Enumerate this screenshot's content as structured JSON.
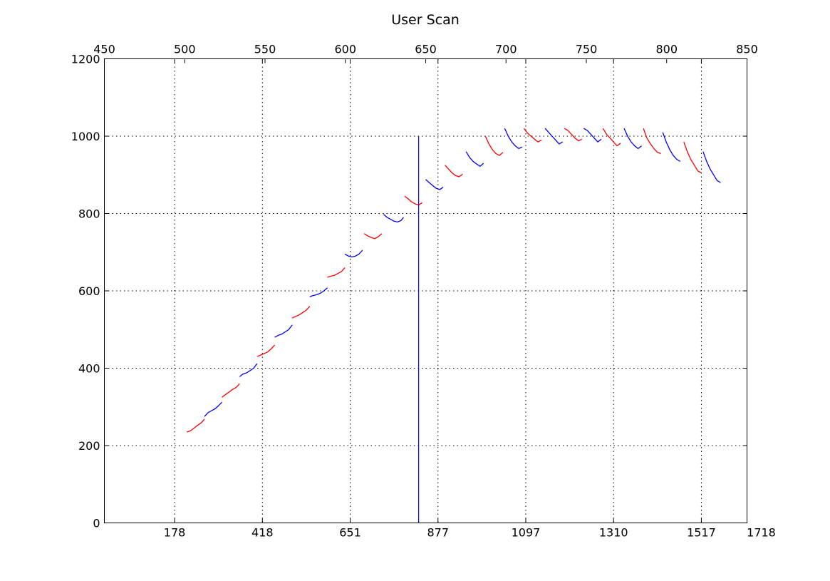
{
  "chart_data": {
    "type": "line",
    "title": "User Scan",
    "xlabel": "",
    "ylabel": "",
    "ylim": [
      0,
      1200
    ],
    "bottom_axis": {
      "range": [
        0,
        1830
      ],
      "ticks": [
        {
          "value": 200,
          "label": "178"
        },
        {
          "value": 450,
          "label": "418"
        },
        {
          "value": 700,
          "label": "651"
        },
        {
          "value": 950,
          "label": "877"
        },
        {
          "value": 1200,
          "label": "1097"
        },
        {
          "value": 1450,
          "label": "1310"
        },
        {
          "value": 1700,
          "label": "1517"
        },
        {
          "value": 1950,
          "label": "1718"
        }
      ]
    },
    "top_axis": {
      "range": [
        450,
        850
      ],
      "ticks": [
        450,
        500,
        550,
        600,
        650,
        700,
        750,
        800,
        850
      ]
    },
    "y_ticks": [
      0,
      200,
      400,
      600,
      800,
      1000,
      1200
    ],
    "grid": true,
    "colors": {
      "red": "#ff0000",
      "blue": "#0000ff",
      "marker": "#0000ff"
    },
    "marker_line": {
      "x": 895,
      "y_from": 0,
      "y_to": 1000
    },
    "series": [
      {
        "color": "red",
        "points": [
          [
            235,
            235
          ],
          [
            245,
            238
          ],
          [
            255,
            245
          ],
          [
            265,
            252
          ],
          [
            275,
            258
          ],
          [
            285,
            268
          ]
        ]
      },
      {
        "color": "blue",
        "points": [
          [
            285,
            275
          ],
          [
            295,
            285
          ],
          [
            305,
            290
          ],
          [
            315,
            295
          ],
          [
            325,
            303
          ],
          [
            335,
            312
          ]
        ]
      },
      {
        "color": "red",
        "points": [
          [
            335,
            325
          ],
          [
            345,
            332
          ],
          [
            355,
            338
          ],
          [
            365,
            345
          ],
          [
            375,
            350
          ],
          [
            385,
            360
          ]
        ]
      },
      {
        "color": "blue",
        "points": [
          [
            385,
            378
          ],
          [
            395,
            385
          ],
          [
            405,
            388
          ],
          [
            415,
            394
          ],
          [
            425,
            400
          ],
          [
            435,
            412
          ]
        ]
      },
      {
        "color": "red",
        "points": [
          [
            435,
            430
          ],
          [
            445,
            434
          ],
          [
            455,
            438
          ],
          [
            465,
            442
          ],
          [
            475,
            450
          ],
          [
            485,
            460
          ]
        ]
      },
      {
        "color": "blue",
        "points": [
          [
            485,
            480
          ],
          [
            495,
            485
          ],
          [
            505,
            488
          ],
          [
            515,
            494
          ],
          [
            525,
            500
          ],
          [
            535,
            512
          ]
        ]
      },
      {
        "color": "red",
        "points": [
          [
            535,
            530
          ],
          [
            545,
            534
          ],
          [
            555,
            538
          ],
          [
            565,
            544
          ],
          [
            575,
            550
          ],
          [
            585,
            560
          ]
        ]
      },
      {
        "color": "blue",
        "points": [
          [
            585,
            585
          ],
          [
            595,
            588
          ],
          [
            605,
            590
          ],
          [
            615,
            594
          ],
          [
            625,
            600
          ],
          [
            635,
            608
          ]
        ]
      },
      {
        "color": "red",
        "points": [
          [
            635,
            635
          ],
          [
            645,
            638
          ],
          [
            655,
            640
          ],
          [
            665,
            645
          ],
          [
            675,
            650
          ],
          [
            685,
            660
          ]
        ]
      },
      {
        "color": "blue",
        "points": [
          [
            685,
            695
          ],
          [
            695,
            690
          ],
          [
            705,
            688
          ],
          [
            715,
            690
          ],
          [
            725,
            695
          ],
          [
            735,
            705
          ]
        ]
      },
      {
        "color": "red",
        "points": [
          [
            740,
            748
          ],
          [
            750,
            742
          ],
          [
            760,
            738
          ],
          [
            770,
            735
          ],
          [
            780,
            740
          ],
          [
            790,
            748
          ]
        ]
      },
      {
        "color": "blue",
        "points": [
          [
            795,
            798
          ],
          [
            805,
            790
          ],
          [
            815,
            785
          ],
          [
            825,
            780
          ],
          [
            835,
            778
          ],
          [
            845,
            782
          ],
          [
            852,
            790
          ]
        ]
      },
      {
        "color": "red",
        "points": [
          [
            855,
            845
          ],
          [
            865,
            838
          ],
          [
            875,
            830
          ],
          [
            885,
            825
          ],
          [
            895,
            822
          ],
          [
            905,
            828
          ]
        ]
      },
      {
        "color": "blue",
        "points": [
          [
            915,
            888
          ],
          [
            925,
            880
          ],
          [
            935,
            872
          ],
          [
            945,
            865
          ],
          [
            955,
            862
          ],
          [
            965,
            868
          ]
        ]
      },
      {
        "color": "red",
        "points": [
          [
            970,
            925
          ],
          [
            980,
            915
          ],
          [
            990,
            905
          ],
          [
            1000,
            898
          ],
          [
            1010,
            895
          ],
          [
            1020,
            902
          ]
        ]
      },
      {
        "color": "blue",
        "points": [
          [
            1030,
            960
          ],
          [
            1040,
            945
          ],
          [
            1050,
            935
          ],
          [
            1060,
            928
          ],
          [
            1070,
            922
          ],
          [
            1080,
            930
          ]
        ]
      },
      {
        "color": "red",
        "points": [
          [
            1085,
            1000
          ],
          [
            1095,
            980
          ],
          [
            1105,
            965
          ],
          [
            1115,
            955
          ],
          [
            1125,
            950
          ],
          [
            1135,
            958
          ]
        ]
      },
      {
        "color": "blue",
        "points": [
          [
            1140,
            1020
          ],
          [
            1150,
            1000
          ],
          [
            1160,
            985
          ],
          [
            1170,
            975
          ],
          [
            1180,
            968
          ],
          [
            1190,
            972
          ]
        ]
      },
      {
        "color": "red",
        "points": [
          [
            1195,
            1020
          ],
          [
            1205,
            1008
          ],
          [
            1215,
            1000
          ],
          [
            1225,
            992
          ],
          [
            1235,
            985
          ],
          [
            1245,
            990
          ]
        ]
      },
      {
        "color": "blue",
        "points": [
          [
            1255,
            1020
          ],
          [
            1265,
            1010
          ],
          [
            1275,
            1000
          ],
          [
            1285,
            990
          ],
          [
            1295,
            980
          ],
          [
            1305,
            985
          ]
        ]
      },
      {
        "color": "red",
        "points": [
          [
            1310,
            1020
          ],
          [
            1320,
            1015
          ],
          [
            1330,
            1005
          ],
          [
            1340,
            995
          ],
          [
            1350,
            988
          ],
          [
            1360,
            992
          ]
        ]
      },
      {
        "color": "blue",
        "points": [
          [
            1365,
            1020
          ],
          [
            1375,
            1015
          ],
          [
            1385,
            1005
          ],
          [
            1395,
            995
          ],
          [
            1405,
            985
          ],
          [
            1415,
            992
          ]
        ]
      },
      {
        "color": "red",
        "points": [
          [
            1420,
            1020
          ],
          [
            1430,
            1005
          ],
          [
            1440,
            995
          ],
          [
            1450,
            985
          ],
          [
            1460,
            975
          ],
          [
            1470,
            982
          ]
        ]
      },
      {
        "color": "blue",
        "points": [
          [
            1480,
            1020
          ],
          [
            1490,
            1000
          ],
          [
            1500,
            985
          ],
          [
            1510,
            975
          ],
          [
            1520,
            968
          ],
          [
            1530,
            975
          ]
        ]
      },
      {
        "color": "red",
        "points": [
          [
            1535,
            1020
          ],
          [
            1545,
            995
          ],
          [
            1555,
            980
          ],
          [
            1565,
            968
          ],
          [
            1575,
            958
          ],
          [
            1585,
            955
          ]
        ]
      },
      {
        "color": "blue",
        "points": [
          [
            1590,
            1010
          ],
          [
            1600,
            985
          ],
          [
            1610,
            965
          ],
          [
            1620,
            950
          ],
          [
            1630,
            940
          ],
          [
            1640,
            935
          ]
        ]
      },
      {
        "color": "red",
        "points": [
          [
            1650,
            985
          ],
          [
            1660,
            960
          ],
          [
            1670,
            940
          ],
          [
            1680,
            925
          ],
          [
            1690,
            910
          ],
          [
            1700,
            905
          ]
        ]
      },
      {
        "color": "blue",
        "points": [
          [
            1705,
            960
          ],
          [
            1715,
            935
          ],
          [
            1725,
            915
          ],
          [
            1735,
            900
          ],
          [
            1745,
            885
          ],
          [
            1755,
            880
          ]
        ]
      }
    ]
  }
}
